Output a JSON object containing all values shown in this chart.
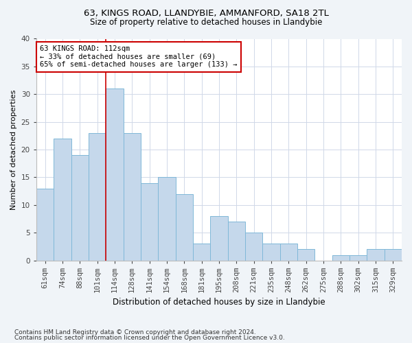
{
  "title1": "63, KINGS ROAD, LLANDYBIE, AMMANFORD, SA18 2TL",
  "title2": "Size of property relative to detached houses in Llandybie",
  "xlabel": "Distribution of detached houses by size in Llandybie",
  "ylabel": "Number of detached properties",
  "footnote1": "Contains HM Land Registry data © Crown copyright and database right 2024.",
  "footnote2": "Contains public sector information licensed under the Open Government Licence v3.0.",
  "bins": [
    "61sqm",
    "74sqm",
    "88sqm",
    "101sqm",
    "114sqm",
    "128sqm",
    "141sqm",
    "154sqm",
    "168sqm",
    "181sqm",
    "195sqm",
    "208sqm",
    "221sqm",
    "235sqm",
    "248sqm",
    "262sqm",
    "275sqm",
    "288sqm",
    "302sqm",
    "315sqm",
    "329sqm"
  ],
  "values": [
    13,
    22,
    19,
    23,
    31,
    23,
    14,
    15,
    12,
    3,
    8,
    7,
    5,
    3,
    3,
    2,
    0,
    1,
    1,
    2,
    2
  ],
  "bar_color": "#c5d8eb",
  "bar_edge_color": "#7fb8d8",
  "vline_x": 3.5,
  "vline_color": "#cc0000",
  "annotation_text": "63 KINGS ROAD: 112sqm\n← 33% of detached houses are smaller (69)\n65% of semi-detached houses are larger (133) →",
  "annotation_box_color": "#ffffff",
  "annotation_box_edge": "#cc0000",
  "ylim": [
    0,
    40
  ],
  "yticks": [
    0,
    5,
    10,
    15,
    20,
    25,
    30,
    35,
    40
  ],
  "grid_color": "#d0d8e8",
  "bg_color": "#f0f4f8",
  "plot_bg_color": "#ffffff",
  "title1_fontsize": 9.5,
  "title2_fontsize": 8.5,
  "xlabel_fontsize": 8.5,
  "ylabel_fontsize": 8,
  "tick_fontsize": 7.5,
  "annotation_fontsize": 7.5,
  "footnote_fontsize": 6.5
}
